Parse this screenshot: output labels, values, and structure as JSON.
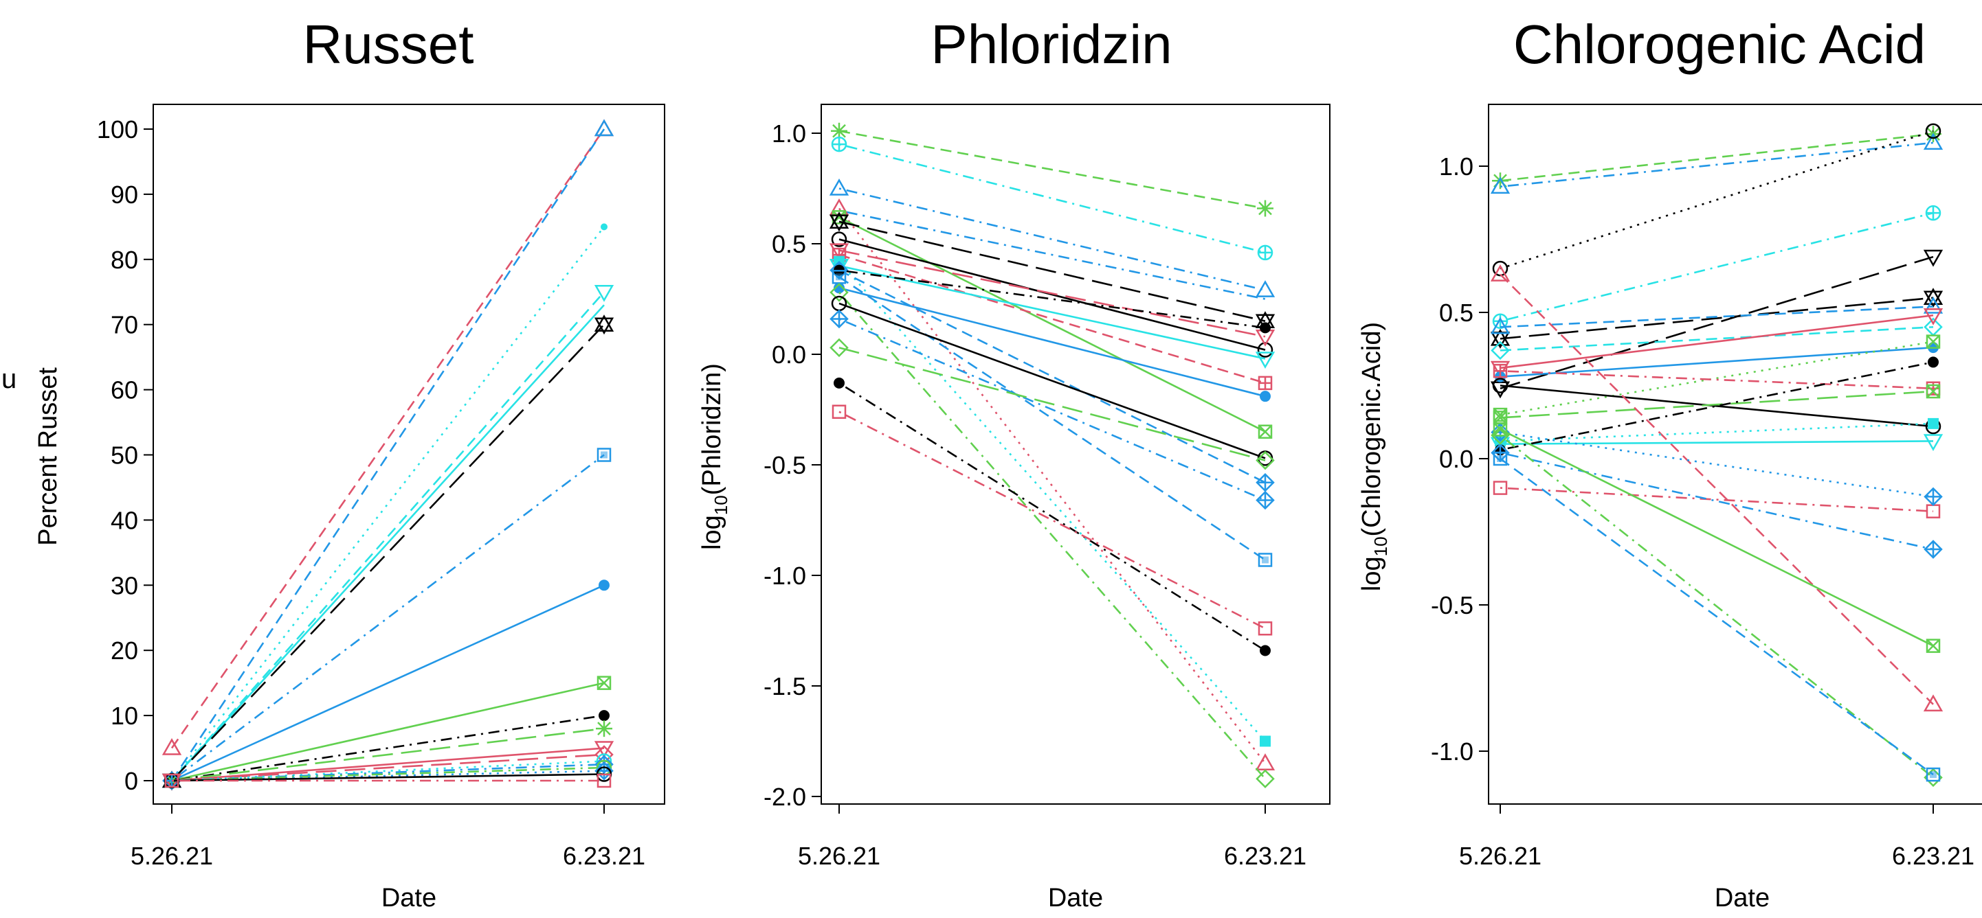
{
  "figure": {
    "stray_text": "u",
    "colors": {
      "black": "#000000",
      "red": "#DF536B",
      "green": "#61D04F",
      "blue": "#2297E6",
      "cyan": "#28E2E5"
    }
  },
  "chart_data": [
    {
      "type": "line",
      "title": "Russet",
      "xlabel": "Date",
      "ylabel": "Percent Russet",
      "x": [
        "5.26.21",
        "6.23.21"
      ],
      "ylim": [
        0,
        100
      ],
      "yticks": [
        "0",
        "10",
        "20",
        "30",
        "40",
        "50",
        "60",
        "70",
        "80",
        "90",
        "100"
      ],
      "grid": false,
      "series": [
        {
          "color": "red",
          "dash": "dash",
          "marker": "triangle",
          "values": [
            5,
            100
          ]
        },
        {
          "color": "blue",
          "dash": "dash",
          "marker": "triangle",
          "values": [
            0,
            100
          ]
        },
        {
          "color": "cyan",
          "dash": "dot",
          "marker": "dot-small",
          "values": [
            0,
            85
          ]
        },
        {
          "color": "cyan",
          "dash": "dash",
          "marker": "triangle-down",
          "values": [
            0,
            75
          ]
        },
        {
          "color": "cyan",
          "dash": "solid",
          "marker": "none",
          "values": [
            0,
            73
          ]
        },
        {
          "color": "black",
          "dash": "longdash",
          "marker": "hourglass",
          "values": [
            0,
            70
          ]
        },
        {
          "color": "blue",
          "dash": "dashdot",
          "marker": "square-blue",
          "values": [
            0,
            50
          ]
        },
        {
          "color": "blue",
          "dash": "solid",
          "marker": "dot",
          "values": [
            0,
            30
          ]
        },
        {
          "color": "green",
          "dash": "solid",
          "marker": "square-x",
          "values": [
            0,
            15
          ]
        },
        {
          "color": "black",
          "dash": "dashdot",
          "marker": "dot",
          "values": [
            0,
            10
          ]
        },
        {
          "color": "green",
          "dash": "longdash",
          "marker": "asterisk",
          "values": [
            0,
            8
          ]
        },
        {
          "color": "red",
          "dash": "solid",
          "marker": "triangle-down",
          "values": [
            0,
            5
          ]
        },
        {
          "color": "red",
          "dash": "longdash",
          "marker": "diamond",
          "values": [
            0,
            4
          ]
        },
        {
          "color": "cyan",
          "dash": "dot",
          "marker": "circle-plus",
          "values": [
            0,
            3
          ]
        },
        {
          "color": "blue",
          "dash": "dashdot",
          "marker": "diamond-plus",
          "values": [
            0,
            2.5
          ]
        },
        {
          "color": "green",
          "dash": "dashdot",
          "marker": "circle",
          "values": [
            0,
            2
          ]
        },
        {
          "color": "blue",
          "dash": "dot",
          "marker": "diamond-plus",
          "values": [
            0,
            1.5
          ]
        },
        {
          "color": "black",
          "dash": "solid",
          "marker": "circle",
          "values": [
            0,
            1
          ]
        },
        {
          "color": "red",
          "dash": "dashdot",
          "marker": "square",
          "values": [
            0,
            0
          ]
        }
      ]
    },
    {
      "type": "line",
      "title": "Phloridzin",
      "xlabel": "Date",
      "ylabel": "log10(Phloridzin)",
      "ylabel_parts": {
        "base": "log",
        "sub": "10",
        "rest": "(Phloridzin)"
      },
      "x": [
        "5.26.21",
        "6.23.21"
      ],
      "ylim": [
        -2.0,
        1.0
      ],
      "yticks": [
        "-2.0",
        "-1.5",
        "-1.0",
        "-0.5",
        "0.0",
        "0.5",
        "1.0"
      ],
      "grid": false,
      "series": [
        {
          "color": "green",
          "dash": "dash",
          "marker": "asterisk",
          "values": [
            1.01,
            0.66
          ]
        },
        {
          "color": "cyan",
          "dash": "dashdot",
          "marker": "circle-plus",
          "values": [
            0.95,
            0.46
          ]
        },
        {
          "color": "blue",
          "dash": "dashdot",
          "marker": "triangle",
          "values": [
            0.75,
            0.29
          ]
        },
        {
          "color": "blue",
          "dash": "dashdot",
          "marker": "none",
          "values": [
            0.65,
            0.25
          ]
        },
        {
          "color": "red",
          "dash": "dot",
          "marker": "triangle",
          "values": [
            0.66,
            -1.85
          ]
        },
        {
          "color": "green",
          "dash": "solid",
          "marker": "square-x",
          "values": [
            0.62,
            -0.35
          ]
        },
        {
          "color": "black",
          "dash": "longdash",
          "marker": "hourglass",
          "values": [
            0.6,
            0.15
          ]
        },
        {
          "color": "black",
          "dash": "solid",
          "marker": "circle",
          "values": [
            0.52,
            0.02
          ]
        },
        {
          "color": "red",
          "dash": "longdash",
          "marker": "triangle-down",
          "values": [
            0.47,
            0.08
          ]
        },
        {
          "color": "red",
          "dash": "dash",
          "marker": "square-plus",
          "values": [
            0.45,
            -0.13
          ]
        },
        {
          "color": "cyan",
          "dash": "dot",
          "marker": "square-filled",
          "values": [
            0.42,
            -1.75
          ]
        },
        {
          "color": "cyan",
          "dash": "solid",
          "marker": "triangle-down",
          "values": [
            0.4,
            -0.02
          ]
        },
        {
          "color": "blue",
          "dash": "dash",
          "marker": "diamond-plus",
          "values": [
            0.38,
            -0.58
          ]
        },
        {
          "color": "black",
          "dash": "dashdot",
          "marker": "dot",
          "values": [
            0.38,
            0.12
          ]
        },
        {
          "color": "blue",
          "dash": "dash",
          "marker": "square-blue",
          "values": [
            0.35,
            -0.93
          ]
        },
        {
          "color": "blue",
          "dash": "solid",
          "marker": "dot",
          "values": [
            0.3,
            -0.19
          ]
        },
        {
          "color": "green",
          "dash": "dashdot",
          "marker": "diamond",
          "values": [
            0.28,
            -1.92
          ]
        },
        {
          "color": "black",
          "dash": "solid",
          "marker": "circle",
          "values": [
            0.23,
            -0.47
          ]
        },
        {
          "color": "blue",
          "dash": "dashdot",
          "marker": "diamond-plus",
          "values": [
            0.16,
            -0.66
          ]
        },
        {
          "color": "green",
          "dash": "longdash",
          "marker": "diamond",
          "values": [
            0.03,
            -0.48
          ]
        },
        {
          "color": "black",
          "dash": "dashdot",
          "marker": "dot",
          "values": [
            -0.13,
            -1.34
          ]
        },
        {
          "color": "red",
          "dash": "dashdot",
          "marker": "square",
          "values": [
            -0.26,
            -1.24
          ]
        }
      ]
    },
    {
      "type": "line",
      "title": "Chlorogenic Acid",
      "xlabel": "Date",
      "ylabel": "log10(Chlorogenic.Acid)",
      "ylabel_parts": {
        "base": "log",
        "sub": "10",
        "rest": "(Chlorogenic.Acid)"
      },
      "x": [
        "5.26.21",
        "6.23.21"
      ],
      "ylim": [
        -1.0,
        1.0
      ],
      "yticks": [
        "-1.0",
        "-0.5",
        "0.0",
        "0.5",
        "1.0"
      ],
      "grid": false,
      "series": [
        {
          "color": "green",
          "dash": "dash",
          "marker": "asterisk",
          "values": [
            0.95,
            1.11
          ]
        },
        {
          "color": "blue",
          "dash": "dashdot",
          "marker": "triangle",
          "values": [
            0.93,
            1.08
          ]
        },
        {
          "color": "black",
          "dash": "dot",
          "marker": "circle",
          "values": [
            0.65,
            1.12
          ]
        },
        {
          "color": "cyan",
          "dash": "dashdot",
          "marker": "circle-plus",
          "values": [
            0.47,
            0.84
          ]
        },
        {
          "color": "black",
          "dash": "longdash",
          "marker": "triangle-down",
          "values": [
            0.24,
            0.69
          ]
        },
        {
          "color": "black",
          "dash": "longdash",
          "marker": "hourglass",
          "values": [
            0.41,
            0.55
          ]
        },
        {
          "color": "blue",
          "dash": "dash",
          "marker": "triangle",
          "values": [
            0.45,
            0.52
          ]
        },
        {
          "color": "cyan",
          "dash": "dash",
          "marker": "diamond",
          "values": [
            0.37,
            0.45
          ]
        },
        {
          "color": "red",
          "dash": "solid",
          "marker": "triangle-down",
          "values": [
            0.31,
            0.49
          ]
        },
        {
          "color": "blue",
          "dash": "solid",
          "marker": "dot",
          "values": [
            0.28,
            0.38
          ]
        },
        {
          "color": "green",
          "dash": "dot",
          "marker": "square-x",
          "values": [
            0.15,
            0.4
          ]
        },
        {
          "color": "black",
          "dash": "solid",
          "marker": "circle",
          "values": [
            0.25,
            0.11
          ]
        },
        {
          "color": "red",
          "dash": "dashdot",
          "marker": "square-plus",
          "values": [
            0.3,
            0.24
          ]
        },
        {
          "color": "green",
          "dash": "longdash",
          "marker": "square-x",
          "values": [
            0.14,
            0.23
          ]
        },
        {
          "color": "red",
          "dash": "dash",
          "marker": "triangle",
          "values": [
            0.63,
            -0.84
          ]
        },
        {
          "color": "cyan",
          "dash": "solid",
          "marker": "triangle-down",
          "values": [
            0.05,
            0.06
          ]
        },
        {
          "color": "cyan",
          "dash": "dot",
          "marker": "square-filled",
          "values": [
            0.06,
            0.12
          ]
        },
        {
          "color": "black",
          "dash": "dashdot",
          "marker": "dot",
          "values": [
            0.03,
            0.33
          ]
        },
        {
          "color": "red",
          "dash": "dashdot",
          "marker": "square",
          "values": [
            -0.1,
            -0.18
          ]
        },
        {
          "color": "blue",
          "dash": "dot",
          "marker": "diamond-plus",
          "values": [
            0.09,
            -0.13
          ]
        },
        {
          "color": "blue",
          "dash": "dashdot",
          "marker": "diamond-plus",
          "values": [
            0.02,
            -0.31
          ]
        },
        {
          "color": "green",
          "dash": "solid",
          "marker": "square-x",
          "values": [
            0.1,
            -0.64
          ]
        },
        {
          "color": "green",
          "dash": "dashdot",
          "marker": "diamond",
          "values": [
            0.08,
            -1.09
          ]
        },
        {
          "color": "blue",
          "dash": "dash",
          "marker": "square-blue",
          "values": [
            0.0,
            -1.08
          ]
        }
      ]
    }
  ]
}
